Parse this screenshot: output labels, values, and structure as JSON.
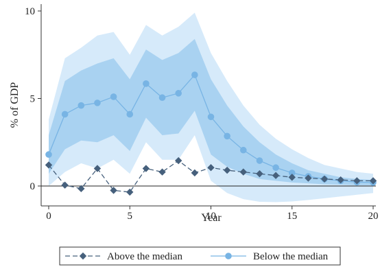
{
  "chart_data": {
    "type": "line",
    "xlabel": "Year",
    "ylabel": "% of GDP",
    "xlim": [
      0,
      20
    ],
    "ylim": [
      -1,
      10
    ],
    "xticks": [
      "0",
      "5",
      "10",
      "15",
      "20"
    ],
    "yticks": [
      "0",
      "5",
      "10"
    ],
    "x": [
      0,
      1,
      2,
      3,
      4,
      5,
      6,
      7,
      8,
      9,
      10,
      11,
      12,
      13,
      14,
      15,
      16,
      17,
      18,
      19,
      20
    ],
    "series": [
      {
        "name": "Above the median",
        "color": "#46607c",
        "marker": "diamond",
        "linestyle": "dashed",
        "values": [
          1.2,
          0.05,
          -0.15,
          1.0,
          -0.25,
          -0.35,
          1.0,
          0.8,
          1.45,
          0.75,
          1.05,
          0.9,
          0.8,
          0.7,
          0.6,
          0.5,
          0.45,
          0.4,
          0.35,
          0.3,
          0.3
        ]
      },
      {
        "name": "Below the median",
        "color": "#78b4e4",
        "marker": "circle",
        "linestyle": "solid",
        "values": [
          1.8,
          4.1,
          4.6,
          4.75,
          5.1,
          4.1,
          5.85,
          5.05,
          5.3,
          6.35,
          3.95,
          2.85,
          2.05,
          1.45,
          1.05,
          0.75,
          0.55,
          0.4,
          0.3,
          0.22,
          0.2
        ],
        "band_inner_upper": [
          2.9,
          6.0,
          6.6,
          7.0,
          7.3,
          6.1,
          7.8,
          7.2,
          7.6,
          8.4,
          6.1,
          4.6,
          3.4,
          2.5,
          1.8,
          1.3,
          0.9,
          0.7,
          0.5,
          0.4,
          0.35
        ],
        "band_inner_lower": [
          0.7,
          2.1,
          2.6,
          2.5,
          2.9,
          2.0,
          3.9,
          2.9,
          3.0,
          4.3,
          1.8,
          1.1,
          0.7,
          0.4,
          0.3,
          0.2,
          0.15,
          0.1,
          0.08,
          0.05,
          0.05
        ],
        "band_outer_upper": [
          3.8,
          7.3,
          7.9,
          8.6,
          8.8,
          7.5,
          9.2,
          8.6,
          9.1,
          9.9,
          7.6,
          6.0,
          4.6,
          3.5,
          2.7,
          2.1,
          1.6,
          1.2,
          1.0,
          0.8,
          0.7
        ],
        "band_outer_lower": [
          0.0,
          0.8,
          1.3,
          1.0,
          1.5,
          0.7,
          2.5,
          1.5,
          1.5,
          2.9,
          0.3,
          -0.4,
          -0.75,
          -0.9,
          -0.92,
          -0.88,
          -0.8,
          -0.7,
          -0.6,
          -0.5,
          -0.4
        ]
      }
    ],
    "legend": {
      "placement": "bottom"
    },
    "zero_line": true,
    "grid": false,
    "band_colors": {
      "inner": "#a9d2f1",
      "outer": "#d6eafa"
    }
  }
}
